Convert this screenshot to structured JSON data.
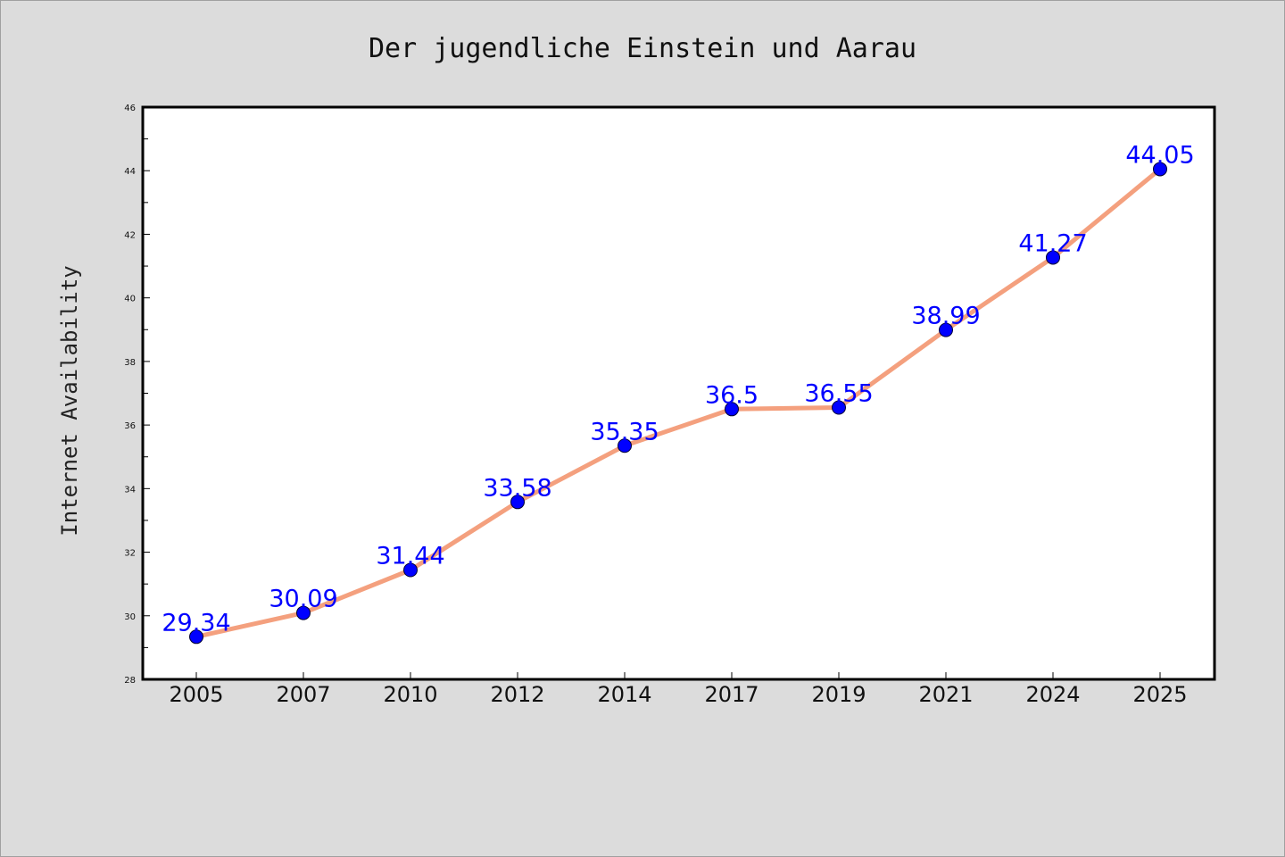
{
  "chart_data": {
    "type": "line",
    "title": "Der jugendliche Einstein und Aarau",
    "xlabel": "",
    "ylabel": "Internet Availability",
    "categories": [
      "2005",
      "2007",
      "2010",
      "2012",
      "2014",
      "2017",
      "2019",
      "2021",
      "2024",
      "2025"
    ],
    "series": [
      {
        "values": [
          29.34,
          30.09,
          31.44,
          33.58,
          35.35,
          36.5,
          36.55,
          38.99,
          41.27,
          44.05
        ],
        "data_labels": [
          "29.34",
          "30.09",
          "31.44",
          "33.58",
          "35.35",
          "36.5",
          "36.55",
          "38.99",
          "41.27",
          "44.05"
        ],
        "line_color": "#f4a07e",
        "marker_color": "#0000ff"
      }
    ],
    "ylim": [
      28,
      46
    ],
    "yticks": [
      "28",
      "30",
      "32",
      "34",
      "36",
      "38",
      "40",
      "42",
      "44",
      "46"
    ],
    "grid": false,
    "legend": "none"
  },
  "colors": {
    "background": "#dcdcdc",
    "plot_background": "#ffffff",
    "line": "#f4a07e",
    "marker": "#0000ff",
    "data_label": "#0000ff"
  }
}
